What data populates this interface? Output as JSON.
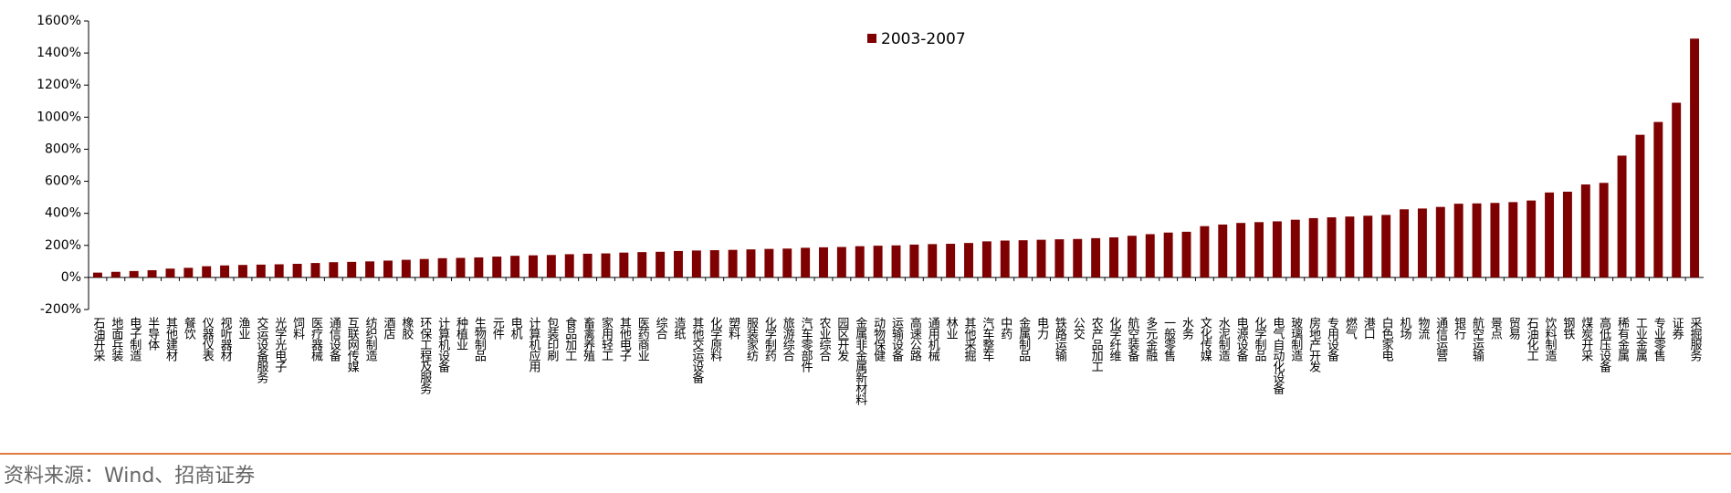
{
  "chart_data": {
    "type": "bar",
    "categories": [
      "石油开采",
      "地面兵装",
      "电子制造",
      "半导体",
      "其他建材",
      "餐饮",
      "仪器仪表",
      "视听器材",
      "渔业",
      "交运设备服务",
      "光学光电子",
      "饲料",
      "医疗器械",
      "通信设备",
      "互联网传媒",
      "纺织制造",
      "酒店",
      "橡胶",
      "环保工程及服务",
      "计算机设备",
      "种植业",
      "生物制品",
      "元件",
      "电机",
      "计算机应用",
      "包装印刷",
      "食品加工",
      "畜禽养殖",
      "家用轻工",
      "其他电子",
      "医药商业",
      "综合",
      "造纸",
      "其他交运设备",
      "化学原料",
      "塑料",
      "服装家纺",
      "化学制药",
      "旅游综合",
      "汽车零部件",
      "农业综合",
      "园区开发",
      "金属非金属新材料",
      "动物保健",
      "运输设备",
      "高速公路",
      "通用机械",
      "林业",
      "其他采掘",
      "汽车整车",
      "中药",
      "金属制品",
      "电力",
      "铁路运输",
      "公交",
      "农产品加工",
      "化学纤维",
      "航空装备",
      "多元金融",
      "一般零售",
      "水务",
      "文化传媒",
      "水泥制造",
      "电源设备",
      "化学制品",
      "电气自动化设备",
      "玻璃制造",
      "房地产开发",
      "专用设备",
      "燃气",
      "港口",
      "白色家电",
      "机场",
      "物流",
      "通信运营",
      "银行",
      "航空运输",
      "景点",
      "贸易",
      "石油化工",
      "饮料制造",
      "钢铁",
      "煤炭开采",
      "高低压设备",
      "稀有金属",
      "工业金属",
      "专业零售",
      "证券",
      "采掘服务"
    ],
    "series": [
      {
        "name": "2003-2007",
        "color": "#7f0000",
        "values": [
          30,
          35,
          40,
          45,
          55,
          60,
          70,
          75,
          78,
          80,
          82,
          85,
          90,
          95,
          97,
          100,
          105,
          110,
          115,
          120,
          122,
          125,
          130,
          135,
          138,
          140,
          145,
          148,
          150,
          155,
          158,
          160,
          165,
          168,
          170,
          172,
          175,
          178,
          180,
          185,
          188,
          190,
          195,
          198,
          200,
          205,
          208,
          210,
          215,
          225,
          230,
          232,
          235,
          238,
          240,
          245,
          250,
          260,
          270,
          280,
          285,
          320,
          330,
          340,
          345,
          350,
          360,
          370,
          375,
          380,
          385,
          390,
          425,
          430,
          440,
          460,
          462,
          465,
          470,
          480,
          530,
          535,
          580,
          590,
          760,
          890,
          970,
          1090,
          1490
        ]
      }
    ],
    "ylim": [
      -200,
      1600
    ],
    "yticks": [
      {
        "value": -200,
        "label": "-200%"
      },
      {
        "value": 0,
        "label": "0%"
      },
      {
        "value": 200,
        "label": "200%"
      },
      {
        "value": 400,
        "label": "400%"
      },
      {
        "value": 600,
        "label": "600%"
      },
      {
        "value": 800,
        "label": "800%"
      },
      {
        "value": 1000,
        "label": "1000%"
      },
      {
        "value": 1200,
        "label": "1200%"
      },
      {
        "value": 1400,
        "label": "1400%"
      },
      {
        "value": 1600,
        "label": "1600%"
      }
    ],
    "grid": false,
    "source": "资料来源：Wind、招商证券"
  }
}
